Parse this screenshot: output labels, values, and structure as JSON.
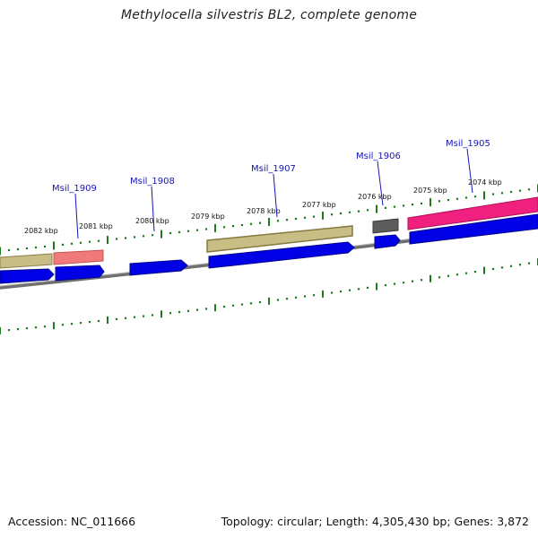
{
  "title": "Methylocella silvestris BL2, complete genome",
  "footer": {
    "accession": "Accession: NC_011666",
    "summary": "Topology: circular; Length: 4,305,430 bp; Genes: 3,872"
  },
  "kbp_labels": [
    "2082 kbp",
    "2081 kbp",
    "2080 kbp",
    "2079 kbp",
    "2078 kbp",
    "2077 kbp",
    "2076 kbp",
    "2075 kbp",
    "2074 kbp"
  ],
  "gene_labels": [
    "Msil_1909",
    "Msil_1908",
    "Msil_1907",
    "Msil_1906",
    "Msil_1905"
  ],
  "colors": {
    "tick": "#1e7a1e",
    "label": "#1515b8",
    "backbone": "#7a7a7a",
    "cds": "#0000e6",
    "khaki": "#c8bd85",
    "salmon": "#f07a7a",
    "gray_feature": "#5c5c5c",
    "magenta": "#f0207e"
  }
}
